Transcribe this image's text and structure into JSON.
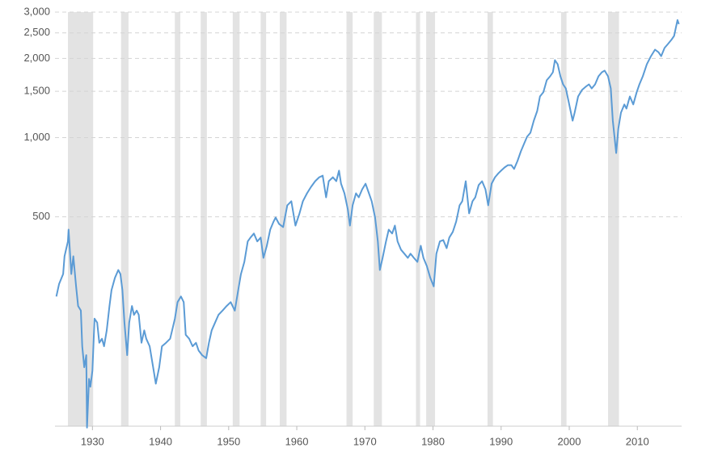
{
  "chart_data": {
    "type": "line",
    "xlim": [
      1924.5,
      2016.5
    ],
    "xticks": [
      1930,
      1940,
      1950,
      1960,
      1970,
      1980,
      1990,
      2000,
      2010
    ],
    "ylim": [
      80,
      3000
    ],
    "yscale": "log",
    "yticks": [
      500,
      {
        "value": 1000,
        "label": "1,000"
      },
      {
        "value": 1500,
        "label": "1,500"
      },
      {
        "value": 2000,
        "label": "2,000"
      },
      {
        "value": 2500,
        "label": "2,500"
      },
      {
        "value": 3000,
        "label": "3,000"
      }
    ],
    "grid": true,
    "shading_color": "#e3e3e3",
    "recessions": [
      [
        1926.4,
        1930.1
      ],
      [
        1934.2,
        1935.3
      ],
      [
        1942.1,
        1942.9
      ],
      [
        1945.9,
        1946.8
      ],
      [
        1950.6,
        1951.6
      ],
      [
        1954.7,
        1955.5
      ],
      [
        1957.5,
        1958.5
      ],
      [
        1967.3,
        1968.2
      ],
      [
        1971.3,
        1972.5
      ],
      [
        1977.5,
        1978.1
      ],
      [
        1979.0,
        1980.3
      ],
      [
        1988.0,
        1988.8
      ],
      [
        1998.8,
        1999.6
      ],
      [
        2005.7,
        2007.3
      ]
    ],
    "x": [
      1924.7,
      1925.1,
      1925.7,
      1925.9,
      1926.4,
      1926.5,
      1926.9,
      1927.2,
      1927.6,
      1927.9,
      1928.3,
      1928.5,
      1928.8,
      1929.1,
      1929.2,
      1929.5,
      1929.7,
      1930.0,
      1930.3,
      1930.7,
      1931.0,
      1931.4,
      1931.7,
      1932.1,
      1932.5,
      1932.8,
      1933.3,
      1933.8,
      1934.1,
      1934.4,
      1934.7,
      1935.1,
      1935.4,
      1935.8,
      1936.1,
      1936.5,
      1936.8,
      1937.2,
      1937.6,
      1937.9,
      1938.4,
      1939.0,
      1939.3,
      1939.8,
      1940.2,
      1940.8,
      1941.4,
      1941.7,
      1942.1,
      1942.5,
      1943.0,
      1943.4,
      1943.7,
      1944.2,
      1944.7,
      1945.2,
      1945.6,
      1946.1,
      1946.7,
      1947.1,
      1947.5,
      1948.0,
      1948.5,
      1949.1,
      1949.7,
      1950.3,
      1950.9,
      1951.4,
      1951.8,
      1952.3,
      1952.8,
      1953.2,
      1953.7,
      1954.2,
      1954.7,
      1955.1,
      1955.6,
      1956.1,
      1956.6,
      1956.9,
      1957.4,
      1958.0,
      1958.6,
      1959.2,
      1959.8,
      1960.4,
      1960.9,
      1961.5,
      1962.1,
      1962.7,
      1963.3,
      1963.8,
      1964.3,
      1964.7,
      1965.3,
      1965.8,
      1966.2,
      1966.5,
      1967.0,
      1967.5,
      1967.8,
      1968.2,
      1968.7,
      1969.1,
      1969.6,
      1970.1,
      1970.6,
      1971.0,
      1971.5,
      1971.9,
      1972.2,
      1972.6,
      1973.1,
      1973.5,
      1974.0,
      1974.4,
      1974.8,
      1975.3,
      1975.8,
      1976.3,
      1976.7,
      1977.2,
      1977.7,
      1978.2,
      1978.6,
      1979.1,
      1979.6,
      1980.1,
      1980.5,
      1981.0,
      1981.5,
      1982.0,
      1982.4,
      1982.9,
      1983.4,
      1983.9,
      1984.3,
      1984.8,
      1985.3,
      1985.8,
      1986.2,
      1986.7,
      1987.2,
      1987.7,
      1988.1,
      1988.6,
      1989.1,
      1989.6,
      1990.0,
      1990.5,
      1991.0,
      1991.5,
      1991.9,
      1992.4,
      1992.9,
      1993.4,
      1993.8,
      1994.3,
      1994.8,
      1995.3,
      1995.7,
      1996.2,
      1996.7,
      1997.2,
      1997.6,
      1997.9,
      1998.3,
      1998.7,
      1999.1,
      1999.5,
      2000.0,
      2000.5,
      2000.8,
      2001.3,
      2001.9,
      2002.4,
      2002.9,
      2003.3,
      2003.8,
      2004.3,
      2004.8,
      2005.2,
      2005.7,
      2006.1,
      2006.4,
      2006.9,
      2007.2,
      2007.6,
      2008.1,
      2008.4,
      2008.9,
      2009.4,
      2009.9,
      2010.3,
      2010.8,
      2011.4,
      2012.0,
      2012.6,
      2013.1,
      2013.5,
      2014.0,
      2014.5,
      2015.0,
      2015.4,
      2015.9,
      2016.1
    ],
    "series": [
      {
        "color": "#5b9bd5",
        "values": [
          249,
          278,
          303,
          354,
          403,
          447,
          303,
          354,
          272,
          229,
          220,
          161,
          134,
          149,
          79,
          121,
          113,
          130,
          205,
          198,
          166,
          172,
          161,
          185,
          229,
          263,
          293,
          314,
          303,
          263,
          198,
          149,
          198,
          229,
          212,
          220,
          212,
          166,
          185,
          172,
          161,
          130,
          116,
          134,
          161,
          166,
          172,
          185,
          205,
          237,
          249,
          237,
          178,
          172,
          161,
          166,
          155,
          149,
          145,
          166,
          185,
          198,
          212,
          220,
          229,
          237,
          220,
          263,
          303,
          337,
          403,
          417,
          432,
          403,
          417,
          349,
          388,
          447,
          480,
          497,
          470,
          457,
          553,
          573,
          463,
          515,
          573,
          614,
          650,
          683,
          707,
          717,
          593,
          683,
          707,
          683,
          749,
          668,
          614,
          533,
          463,
          553,
          614,
          593,
          636,
          668,
          614,
          573,
          497,
          403,
          314,
          349,
          403,
          447,
          432,
          463,
          403,
          375,
          362,
          349,
          362,
          349,
          337,
          388,
          349,
          325,
          293,
          272,
          362,
          403,
          408,
          380,
          417,
          438,
          480,
          553,
          573,
          683,
          515,
          573,
          593,
          660,
          683,
          636,
          553,
          668,
          707,
          732,
          749,
          770,
          786,
          786,
          760,
          815,
          887,
          952,
          1007,
          1043,
          1160,
          1263,
          1434,
          1487,
          1652,
          1711,
          1772,
          1971,
          1901,
          1711,
          1594,
          1538,
          1337,
          1160,
          1245,
          1434,
          1520,
          1560,
          1594,
          1538,
          1594,
          1711,
          1772,
          1797,
          1711,
          1538,
          1160,
          874,
          1081,
          1245,
          1337,
          1290,
          1434,
          1337,
          1487,
          1594,
          1711,
          1901,
          2040,
          2160,
          2112,
          2040,
          2192,
          2271,
          2355,
          2436,
          2800,
          2700
        ]
      }
    ]
  }
}
